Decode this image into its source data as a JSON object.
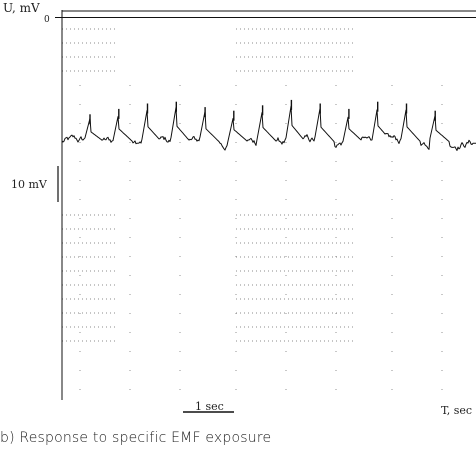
{
  "chart_data": {
    "type": "line",
    "y_axis_label": "U, mV",
    "x_axis_label": "T, sec",
    "zero_tick_label": "0",
    "scale_bar_voltage_label": "10 mV",
    "scale_bar_time_label": "1 sec",
    "caption": "b) Response to specific EMF exposure",
    "grid": "dotted",
    "series_color": "#111111",
    "series": [
      {
        "baseline_mV": -34.5,
        "typical_range_mV": [
          -38.5,
          -30.5
        ],
        "spike_peaks_mV": [
          -28,
          -26.5,
          -25,
          -24.5,
          -26,
          -27,
          -25.5,
          -24,
          -25,
          -26.5,
          -24.5,
          -25,
          -27
        ]
      }
    ]
  }
}
